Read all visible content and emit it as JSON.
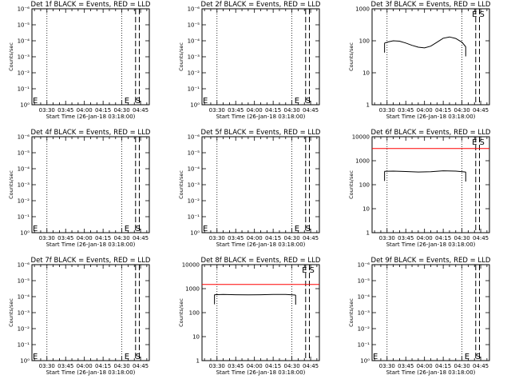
{
  "window": {
    "title": ""
  },
  "colors": {
    "events": "#000000",
    "lld": "#ff0000",
    "background": "#ffffff",
    "axes": "#000000"
  },
  "chart_data": [
    {
      "type": "line",
      "title": "Det 1f BLACK = Events, RED = LLD",
      "xlabel": "Start Time (26-Jan-18 03:18:00)",
      "ylabel": "Counts/sec",
      "xlim": [
        "03:18",
        "04:52"
      ],
      "x_ticks": [
        "03:30",
        "03:45",
        "04:00",
        "04:15",
        "04:30",
        "04:45"
      ],
      "y_scale": "log",
      "ylim": [
        1,
        1e-06
      ],
      "y_ticks": [
        "10⁻⁶",
        "10⁻⁵",
        "10⁻⁴",
        "10⁻³",
        "10⁻²",
        "10⁻¹",
        "10⁰"
      ],
      "dotted_lines_x": [
        "03:30",
        "04:30"
      ],
      "dashed_lines_x": [
        "04:41",
        "04:44"
      ],
      "markers": [
        {
          "text": "E",
          "x": "03:18"
        },
        {
          "text": "E",
          "x": "04:32"
        },
        {
          "text": "S",
          "x": "04:41"
        }
      ],
      "series": []
    },
    {
      "type": "line",
      "title": "Det 2f BLACK = Events, RED = LLD",
      "xlabel": "Start Time (26-Jan-18 03:18:00)",
      "ylabel": "Counts/sec",
      "xlim": [
        "03:18",
        "04:52"
      ],
      "x_ticks": [
        "03:30",
        "03:45",
        "04:00",
        "04:15",
        "04:30",
        "04:45"
      ],
      "y_scale": "log",
      "ylim": [
        1,
        1e-06
      ],
      "y_ticks": [
        "10⁻⁶",
        "10⁻⁵",
        "10⁻⁴",
        "10⁻³",
        "10⁻²",
        "10⁻¹",
        "10⁰"
      ],
      "dotted_lines_x": [
        "03:30",
        "04:30"
      ],
      "dashed_lines_x": [
        "04:41",
        "04:44"
      ],
      "markers": [
        {
          "text": "E",
          "x": "03:18"
        },
        {
          "text": "E",
          "x": "04:32"
        },
        {
          "text": "S",
          "x": "04:41"
        }
      ],
      "series": []
    },
    {
      "type": "line",
      "title": "Det 3f BLACK = Events, RED = LLD",
      "xlabel": "Start Time (26-Jan-18 03:18:00)",
      "ylabel": "Counts/sec",
      "xlim": [
        "03:18",
        "04:52"
      ],
      "x_ticks": [
        "03:30",
        "03:45",
        "04:00",
        "04:15",
        "04:30",
        "04:45"
      ],
      "y_scale": "log",
      "ylim": [
        1,
        1000
      ],
      "y_ticks": [
        "1",
        "10",
        "100",
        "1000"
      ],
      "dotted_lines_x": [
        "03:30",
        "04:30"
      ],
      "dashed_lines_x": [
        "04:41",
        "04:44"
      ],
      "markers": [
        {
          "text": "E",
          "x": "04:38"
        },
        {
          "text": "S",
          "x": "04:44"
        }
      ],
      "series": [
        {
          "color": "#000000",
          "x": [
            "03:28",
            "03:31",
            "03:35",
            "03:40",
            "03:45",
            "03:50",
            "03:55",
            "04:00",
            "04:05",
            "04:10",
            "04:15",
            "04:20",
            "04:25",
            "04:30",
            "04:33"
          ],
          "y": [
            85,
            92,
            100,
            97,
            85,
            72,
            63,
            60,
            68,
            90,
            120,
            132,
            118,
            90,
            65
          ]
        }
      ]
    },
    {
      "type": "line",
      "title": "Det 4f BLACK = Events, RED = LLD",
      "xlabel": "Start Time (26-Jan-18 03:18:00)",
      "ylabel": "Counts/sec",
      "xlim": [
        "03:18",
        "04:52"
      ],
      "x_ticks": [
        "03:30",
        "03:45",
        "04:00",
        "04:15",
        "04:30",
        "04:45"
      ],
      "y_scale": "log",
      "ylim": [
        1,
        1e-06
      ],
      "y_ticks": [
        "10⁻⁶",
        "10⁻⁵",
        "10⁻⁴",
        "10⁻³",
        "10⁻²",
        "10⁻¹",
        "10⁰"
      ],
      "dotted_lines_x": [
        "03:30",
        "04:30"
      ],
      "dashed_lines_x": [
        "04:41",
        "04:44"
      ],
      "markers": [
        {
          "text": "E",
          "x": "03:18"
        },
        {
          "text": "E",
          "x": "04:32"
        },
        {
          "text": "S",
          "x": "04:41"
        }
      ],
      "series": []
    },
    {
      "type": "line",
      "title": "Det 5f BLACK = Events, RED = LLD",
      "xlabel": "Start Time (26-Jan-18 03:18:00)",
      "ylabel": "Counts/sec",
      "xlim": [
        "03:18",
        "04:52"
      ],
      "x_ticks": [
        "03:30",
        "03:45",
        "04:00",
        "04:15",
        "04:30",
        "04:45"
      ],
      "y_scale": "log",
      "ylim": [
        1,
        1e-06
      ],
      "y_ticks": [
        "10⁻⁶",
        "10⁻⁵",
        "10⁻⁴",
        "10⁻³",
        "10⁻²",
        "10⁻¹",
        "10⁰"
      ],
      "dotted_lines_x": [
        "03:30",
        "04:30"
      ],
      "dashed_lines_x": [
        "04:41",
        "04:44"
      ],
      "markers": [
        {
          "text": "E",
          "x": "03:18"
        },
        {
          "text": "E",
          "x": "04:32"
        },
        {
          "text": "S",
          "x": "04:41"
        }
      ],
      "series": []
    },
    {
      "type": "line",
      "title": "Det 6f BLACK = Events, RED = LLD",
      "xlabel": "Start Time (26-Jan-18 03:18:00)",
      "ylabel": "Counts/sec",
      "xlim": [
        "03:18",
        "04:52"
      ],
      "x_ticks": [
        "03:30",
        "03:45",
        "04:00",
        "04:15",
        "04:30",
        "04:45"
      ],
      "y_scale": "log",
      "ylim": [
        1,
        10000
      ],
      "y_ticks": [
        "1",
        "10",
        "100",
        "1000",
        "10000"
      ],
      "dotted_lines_x": [
        "03:30",
        "04:30"
      ],
      "dashed_lines_x": [
        "04:41",
        "04:44"
      ],
      "markers": [
        {
          "text": "E",
          "x": "04:38"
        },
        {
          "text": "S",
          "x": "04:44"
        }
      ],
      "series": [
        {
          "color": "#ff0000",
          "x": [
            "03:18",
            "03:30",
            "03:45",
            "04:00",
            "04:15",
            "04:30",
            "04:52"
          ],
          "y": [
            3200,
            3200,
            3200,
            3200,
            3200,
            3200,
            3200
          ]
        },
        {
          "color": "#000000",
          "x": [
            "03:28",
            "03:35",
            "03:45",
            "03:55",
            "04:05",
            "04:15",
            "04:25",
            "04:33"
          ],
          "y": [
            360,
            370,
            355,
            340,
            350,
            380,
            370,
            340
          ]
        }
      ]
    },
    {
      "type": "line",
      "title": "Det 7f BLACK = Events, RED = LLD",
      "xlabel": "Start Time (26-Jan-18 03:18:00)",
      "ylabel": "Counts/sec",
      "xlim": [
        "03:18",
        "04:52"
      ],
      "x_ticks": [
        "03:30",
        "03:45",
        "04:00",
        "04:15",
        "04:30",
        "04:45"
      ],
      "y_scale": "log",
      "ylim": [
        1,
        1e-06
      ],
      "y_ticks": [
        "10⁻⁶",
        "10⁻⁵",
        "10⁻⁴",
        "10⁻³",
        "10⁻²",
        "10⁻¹",
        "10⁰"
      ],
      "dotted_lines_x": [
        "03:30",
        "04:30"
      ],
      "dashed_lines_x": [
        "04:41",
        "04:44"
      ],
      "markers": [
        {
          "text": "E",
          "x": "03:18"
        },
        {
          "text": "E",
          "x": "04:32"
        },
        {
          "text": "S",
          "x": "04:41"
        }
      ],
      "series": []
    },
    {
      "type": "line",
      "title": "Det 8f BLACK = Events, RED = LLD",
      "xlabel": "Start Time (26-Jan-18 03:18:00)",
      "ylabel": "Counts/sec",
      "xlim": [
        "03:18",
        "04:52"
      ],
      "x_ticks": [
        "03:30",
        "03:45",
        "04:00",
        "04:15",
        "04:30",
        "04:45"
      ],
      "y_scale": "log",
      "ylim": [
        1,
        10000
      ],
      "y_ticks": [
        "1",
        "10",
        "100",
        "1000",
        "10000"
      ],
      "dotted_lines_x": [
        "03:30",
        "04:30"
      ],
      "dashed_lines_x": [
        "04:41",
        "04:44"
      ],
      "markers": [
        {
          "text": "E",
          "x": "04:38"
        },
        {
          "text": "S",
          "x": "04:44"
        }
      ],
      "series": [
        {
          "color": "#ff0000",
          "x": [
            "03:18",
            "03:30",
            "03:45",
            "04:00",
            "04:15",
            "04:30",
            "04:52"
          ],
          "y": [
            1500,
            1500,
            1500,
            1500,
            1500,
            1500,
            1500
          ]
        },
        {
          "color": "#000000",
          "x": [
            "03:28",
            "03:35",
            "03:45",
            "03:55",
            "04:05",
            "04:15",
            "04:25",
            "04:33"
          ],
          "y": [
            560,
            570,
            560,
            550,
            560,
            570,
            570,
            540
          ]
        }
      ]
    },
    {
      "type": "line",
      "title": "Det 9f BLACK = Events, RED = LLD",
      "xlabel": "Start Time (26-Jan-18 03:18:00)",
      "ylabel": "Counts/sec",
      "xlim": [
        "03:18",
        "04:52"
      ],
      "x_ticks": [
        "03:30",
        "03:45",
        "04:00",
        "04:15",
        "04:30",
        "04:45"
      ],
      "y_scale": "log",
      "ylim": [
        1,
        1e-06
      ],
      "y_ticks": [
        "10⁻⁶",
        "10⁻⁵",
        "10⁻⁴",
        "10⁻³",
        "10⁻²",
        "10⁻¹",
        "10⁰"
      ],
      "dotted_lines_x": [
        "03:30",
        "04:30"
      ],
      "dashed_lines_x": [
        "04:41",
        "04:44"
      ],
      "markers": [
        {
          "text": "E",
          "x": "03:18"
        },
        {
          "text": "E",
          "x": "04:32"
        },
        {
          "text": "S",
          "x": "04:41"
        }
      ],
      "series": []
    }
  ]
}
